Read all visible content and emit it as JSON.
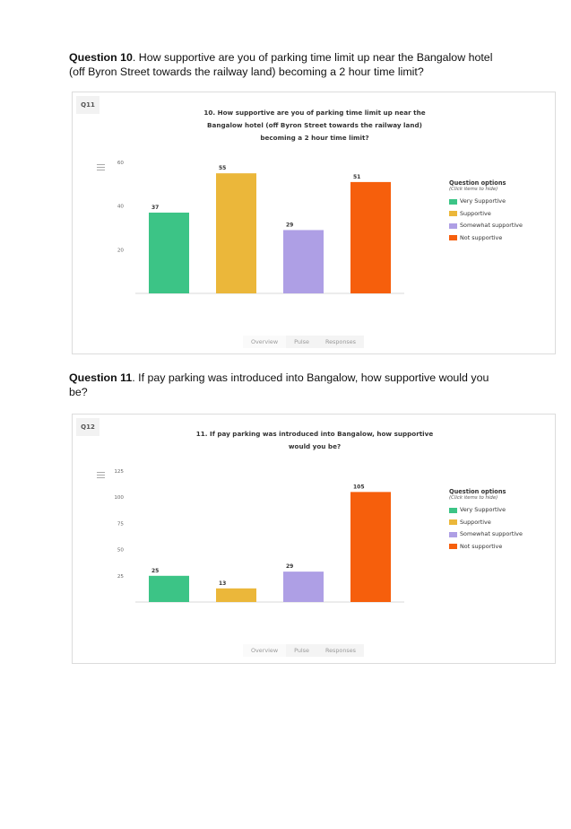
{
  "questions": [
    {
      "heading_bold": "Question 10",
      "heading_rest": ". How supportive are you of parking time limit up near the Bangalow hotel (off Byron Street towards the railway land) becoming a 2 hour time limit?",
      "badge": "Q11",
      "chart_title_lines": [
        "10. How supportive are you of parking time limit up near the",
        "Bangalow hotel (off Byron Street towards the railway land)",
        "becoming a 2 hour time limit?"
      ]
    },
    {
      "heading_bold": "Question 11",
      "heading_rest": ". If pay parking was introduced into Bangalow, how supportive would you be?",
      "badge": "Q12",
      "chart_title_lines": [
        "11. If pay parking was introduced into Bangalow, how supportive",
        "would you be?"
      ]
    }
  ],
  "legend": {
    "title": "Question options",
    "hint": "(Click items to hide)",
    "items": [
      "Very Supportive",
      "Supportive",
      "Somewhat supportive",
      "Not supportive"
    ]
  },
  "tabs": [
    "Overview",
    "Pulse",
    "Responses"
  ],
  "colors": {
    "very_supportive": "#3cc486",
    "supportive": "#ebb73a",
    "somewhat_supportive": "#ae9fe5",
    "not_supportive": "#f65f0c"
  },
  "chart_data": [
    {
      "type": "bar",
      "categories": [
        "Very Supportive",
        "Supportive",
        "Somewhat supportive",
        "Not supportive"
      ],
      "values": [
        37,
        55,
        29,
        51
      ],
      "yticks": [
        20,
        40,
        60
      ],
      "ylim": [
        0,
        60
      ],
      "legend_position": "right"
    },
    {
      "type": "bar",
      "categories": [
        "Very Supportive",
        "Supportive",
        "Somewhat supportive",
        "Not supportive"
      ],
      "values": [
        25,
        13,
        29,
        105
      ],
      "yticks": [
        25,
        50,
        75,
        100,
        125
      ],
      "ylim": [
        0,
        125
      ],
      "legend_position": "right"
    }
  ]
}
